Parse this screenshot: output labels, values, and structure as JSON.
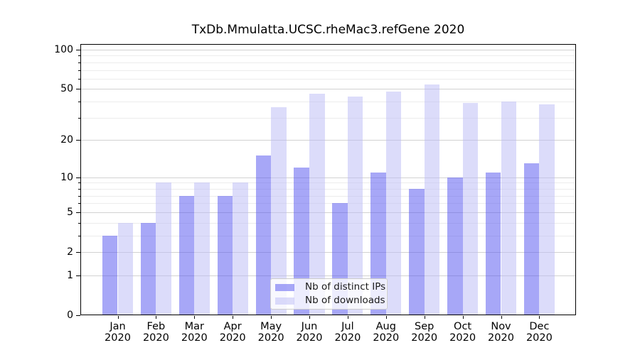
{
  "chart_data": {
    "type": "bar",
    "title": "TxDb.Mmulatta.UCSC.rheMac3.refGene 2020",
    "categories": [
      "Jan 2020",
      "Feb 2020",
      "Mar 2020",
      "Apr 2020",
      "May 2020",
      "Jun 2020",
      "Jul 2020",
      "Aug 2020",
      "Sep 2020",
      "Oct 2020",
      "Nov 2020",
      "Dec 2020"
    ],
    "series": [
      {
        "name": "Nb of distinct IPs",
        "color": "#a8a8f8",
        "fill": "rgba(80,80,240,0.5)",
        "values": [
          3,
          4,
          7,
          7,
          15,
          12,
          6,
          11,
          8,
          10,
          11,
          13
        ]
      },
      {
        "name": "Nb of downloads",
        "color": "#dcdcfa",
        "fill": "rgba(185,185,245,0.5)",
        "values": [
          4,
          9,
          9,
          9,
          36,
          46,
          44,
          48,
          54,
          39,
          40,
          38
        ]
      }
    ],
    "xlabel": "",
    "ylabel": "",
    "yscale": "log1p",
    "ylim": [
      0,
      110
    ],
    "y_ticks_major": [
      0,
      1,
      2,
      5,
      10,
      20,
      50,
      100
    ],
    "y_ticks_minor": [
      3,
      4,
      6,
      7,
      8,
      9,
      30,
      40,
      60,
      70,
      80,
      90
    ],
    "grid": true,
    "legend_position": "lower center"
  },
  "colors": {
    "background": "#ffffff",
    "spine": "#000000",
    "grid_major": "#d2d2d2",
    "grid_minor": "#ececec",
    "legend_border": "#cccccc",
    "tick_text": "#000000"
  }
}
